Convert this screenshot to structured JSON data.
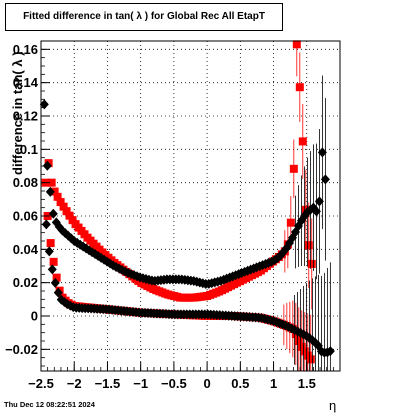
{
  "chart_data": {
    "type": "scatter",
    "title": "Fitted difference in tan( λ ) for Global Rec All EtapT",
    "xlabel": "η",
    "ylabel": "difference in tan( λ )",
    "xlim": [
      -2.5,
      2.0
    ],
    "ylim": [
      -0.033,
      0.165
    ],
    "grid": true,
    "x_ticks": [
      -2.5,
      -2,
      -1.5,
      -1,
      -0.5,
      0,
      0.5,
      1,
      1.5
    ],
    "x_tick_labels": [
      "−2.5",
      "−2",
      "−1.5",
      "−1",
      "−0.5",
      "0",
      "0.5",
      "1",
      "1.5"
    ],
    "y_ticks": [
      -0.02,
      0,
      0.02,
      0.04,
      0.06,
      0.08,
      0.1,
      0.12,
      0.14,
      0.16
    ],
    "y_tick_labels": [
      "−0.02",
      "0",
      "0.02",
      "0.04",
      "0.06",
      "0.08",
      "0.1",
      "0.12",
      "0.14",
      "0.16"
    ],
    "series": [
      {
        "color": "#ff0000",
        "marker": "square",
        "knots_upper": [
          [
            -2.43,
            0.08
          ],
          [
            -2.38,
            0.093
          ],
          [
            -2.34,
            0.08
          ],
          [
            -2.3,
            0.075
          ],
          [
            -2.2,
            0.068
          ],
          [
            -2.1,
            0.062
          ],
          [
            -2.0,
            0.056
          ],
          [
            -1.8,
            0.047
          ],
          [
            -1.6,
            0.039
          ],
          [
            -1.4,
            0.032
          ],
          [
            -1.2,
            0.026
          ],
          [
            -1.0,
            0.02
          ],
          [
            -0.8,
            0.016
          ],
          [
            -0.6,
            0.013
          ],
          [
            -0.4,
            0.011
          ],
          [
            -0.2,
            0.011
          ],
          [
            0.0,
            0.012
          ],
          [
            0.2,
            0.015
          ],
          [
            0.4,
            0.019
          ],
          [
            0.6,
            0.023
          ],
          [
            0.8,
            0.027
          ],
          [
            1.0,
            0.033
          ],
          [
            1.1,
            0.036
          ],
          [
            1.2,
            0.04
          ],
          [
            1.25,
            0.05
          ],
          [
            1.3,
            0.08
          ],
          [
            1.35,
            0.163
          ],
          [
            1.42,
            0.123
          ],
          [
            1.5,
            0.05
          ],
          [
            1.58,
            0.03
          ]
        ],
        "knots_lower": [
          [
            -2.4,
            0.06
          ],
          [
            -2.36,
            0.045
          ],
          [
            -2.3,
            0.03
          ],
          [
            -2.25,
            0.02
          ],
          [
            -2.2,
            0.012
          ],
          [
            -2.1,
            0.008
          ],
          [
            -2.0,
            0.006
          ],
          [
            -1.5,
            0.004
          ],
          [
            -1.0,
            0.002
          ],
          [
            -0.5,
            0.001
          ],
          [
            0.0,
            0.0
          ],
          [
            0.4,
            0.0
          ],
          [
            0.8,
            -0.001
          ],
          [
            1.0,
            -0.003
          ],
          [
            1.2,
            -0.006
          ],
          [
            1.3,
            -0.008
          ],
          [
            1.35,
            -0.012
          ],
          [
            1.4,
            -0.017
          ],
          [
            1.5,
            -0.023
          ],
          [
            1.58,
            -0.027
          ]
        ],
        "step": 0.045,
        "errors_from_eta": 1.15,
        "error_size": 0.012
      },
      {
        "color": "#000000",
        "marker": "diamond",
        "knots_upper": [
          [
            -2.45,
            0.127
          ],
          [
            -2.42,
            0.095
          ],
          [
            -2.38,
            0.082
          ],
          [
            -2.34,
            0.067
          ],
          [
            -2.3,
            0.058
          ],
          [
            -2.2,
            0.052
          ],
          [
            -2.0,
            0.045
          ],
          [
            -1.8,
            0.04
          ],
          [
            -1.6,
            0.035
          ],
          [
            -1.4,
            0.03
          ],
          [
            -1.2,
            0.026
          ],
          [
            -1.0,
            0.023
          ],
          [
            -0.8,
            0.021
          ],
          [
            -0.6,
            0.022
          ],
          [
            -0.4,
            0.022
          ],
          [
            -0.2,
            0.021
          ],
          [
            0.0,
            0.019
          ],
          [
            0.2,
            0.021
          ],
          [
            0.4,
            0.024
          ],
          [
            0.6,
            0.027
          ],
          [
            0.8,
            0.03
          ],
          [
            1.0,
            0.033
          ],
          [
            1.1,
            0.036
          ],
          [
            1.2,
            0.041
          ],
          [
            1.3,
            0.048
          ],
          [
            1.4,
            0.056
          ],
          [
            1.5,
            0.062
          ],
          [
            1.6,
            0.065
          ],
          [
            1.68,
            0.061
          ],
          [
            1.73,
            0.1
          ],
          [
            1.78,
            0.082
          ]
        ],
        "knots_lower": [
          [
            -2.42,
            0.055
          ],
          [
            -2.38,
            0.04
          ],
          [
            -2.34,
            0.03
          ],
          [
            -2.3,
            0.022
          ],
          [
            -2.25,
            0.015
          ],
          [
            -2.2,
            0.01
          ],
          [
            -2.1,
            0.007
          ],
          [
            -2.0,
            0.005
          ],
          [
            -1.5,
            0.004
          ],
          [
            -1.0,
            0.002
          ],
          [
            -0.5,
            0.001
          ],
          [
            0.0,
            0.001
          ],
          [
            0.4,
            0.0
          ],
          [
            0.8,
            -0.001
          ],
          [
            1.0,
            -0.003
          ],
          [
            1.2,
            -0.006
          ],
          [
            1.3,
            -0.008
          ],
          [
            1.4,
            -0.01
          ],
          [
            1.5,
            -0.012
          ],
          [
            1.6,
            -0.015
          ],
          [
            1.68,
            -0.018
          ],
          [
            1.73,
            -0.022
          ],
          [
            1.8,
            -0.022
          ],
          [
            1.86,
            -0.021
          ]
        ],
        "step": 0.045,
        "errors_from_eta": 1.3,
        "error_size": 0.02
      }
    ]
  },
  "title": "Fitted difference in tan( λ ) for Global Rec All EtapT",
  "timestamp": "Thu Dec 12 08:22:51 2024",
  "x_axis_label": "η",
  "y_axis_label": "difference in tan( λ )"
}
